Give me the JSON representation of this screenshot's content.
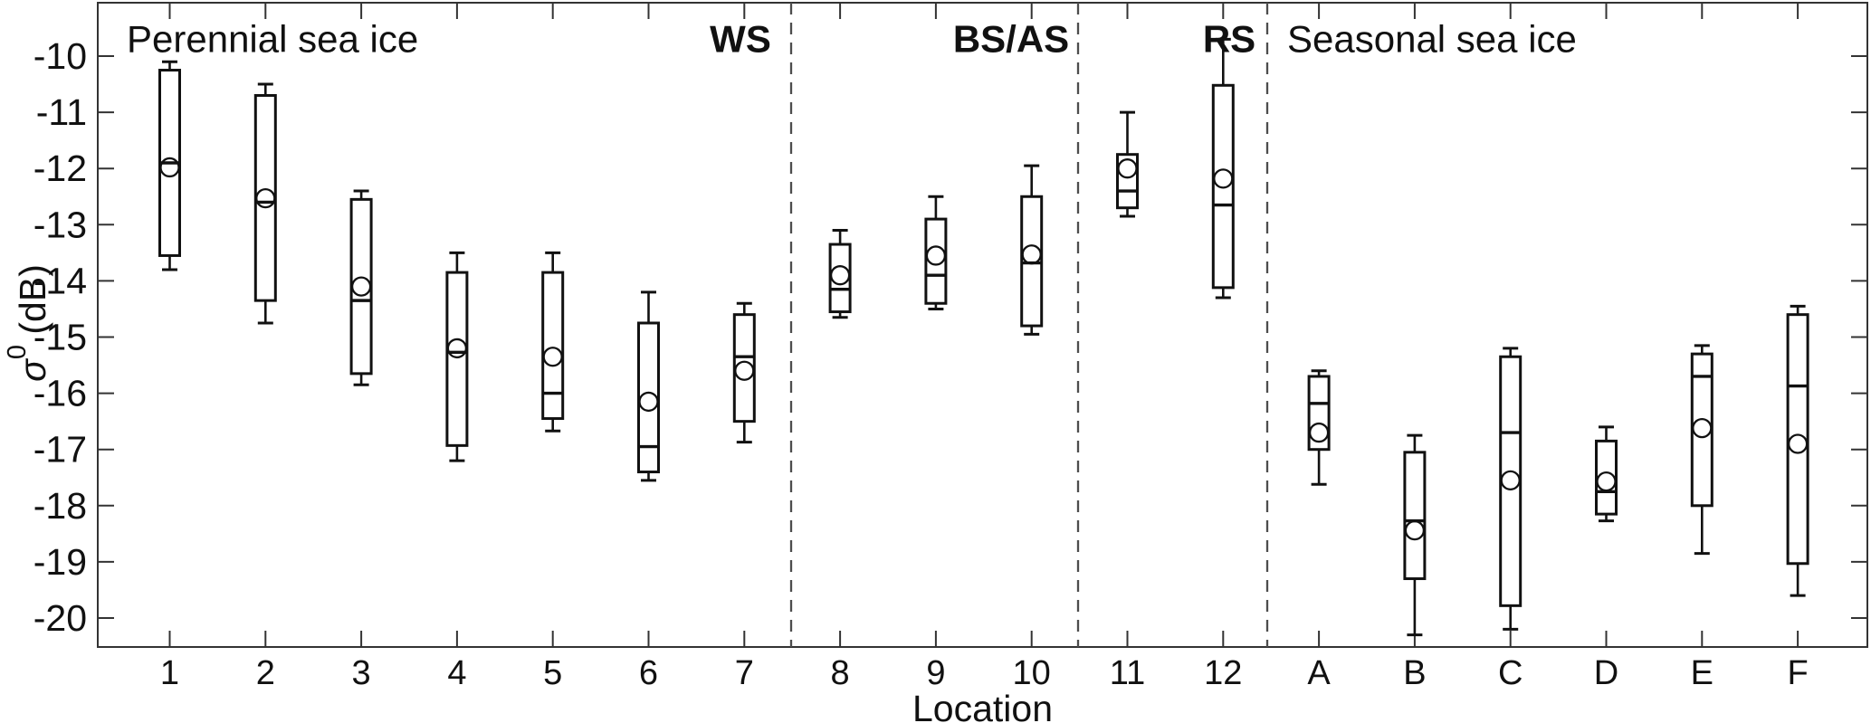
{
  "figure": {
    "background": "#ffffff"
  },
  "chart_data": {
    "type": "boxplot",
    "title": "",
    "xlabel": "Location",
    "ylabel": "σ⁰ (dB)",
    "ylabel_parts": {
      "symbol": "σ",
      "superscript": "0",
      "unit": " (dB)"
    },
    "ylim": [
      -20.5,
      -9.05
    ],
    "yticks": [
      -10,
      -11,
      -12,
      -13,
      -14,
      -15,
      -16,
      -17,
      -18,
      -19,
      -20
    ],
    "ytick_labels": [
      "-10",
      "-11",
      "-12",
      "-13",
      "-14",
      "-15",
      "-16",
      "-17",
      "-18",
      "-19",
      "-20"
    ],
    "categories": [
      "1",
      "2",
      "3",
      "4",
      "5",
      "6",
      "7",
      "8",
      "9",
      "10",
      "11",
      "12",
      "A",
      "B",
      "C",
      "D",
      "E",
      "F"
    ],
    "grid": false,
    "regions": [
      {
        "label": "Perennial sea ice",
        "bold": false,
        "categories": [
          "1",
          "2",
          "3",
          "4",
          "5",
          "6",
          "7",
          "8",
          "9",
          "10",
          "11",
          "12"
        ]
      },
      {
        "label": "WS",
        "bold": true,
        "categories": [
          "1",
          "2",
          "3",
          "4",
          "5",
          "6",
          "7"
        ]
      },
      {
        "label": "BS/AS",
        "bold": true,
        "categories": [
          "8",
          "9",
          "10"
        ]
      },
      {
        "label": "RS",
        "bold": true,
        "categories": [
          "11",
          "12"
        ]
      },
      {
        "label": "Seasonal sea ice",
        "bold": false,
        "categories": [
          "A",
          "B",
          "C",
          "D",
          "E",
          "F"
        ]
      }
    ],
    "dividers_after_categories": [
      "7",
      "10",
      "12"
    ],
    "boxes": [
      {
        "category": "1",
        "whisker_high": -10.1,
        "q3": -10.25,
        "median": -11.9,
        "mean": -11.98,
        "q1": -13.55,
        "whisker_low": -13.8
      },
      {
        "category": "2",
        "whisker_high": -10.5,
        "q3": -10.7,
        "median": -12.6,
        "mean": -12.53,
        "q1": -14.35,
        "whisker_low": -14.75
      },
      {
        "category": "3",
        "whisker_high": -12.4,
        "q3": -12.55,
        "median": -14.35,
        "mean": -14.1,
        "q1": -15.65,
        "whisker_low": -15.85
      },
      {
        "category": "4",
        "whisker_high": -13.5,
        "q3": -13.85,
        "median": -15.27,
        "mean": -15.2,
        "q1": -16.93,
        "whisker_low": -17.2
      },
      {
        "category": "5",
        "whisker_high": -13.5,
        "q3": -13.85,
        "median": -16.0,
        "mean": -15.35,
        "q1": -16.45,
        "whisker_low": -16.67
      },
      {
        "category": "6",
        "whisker_high": -14.2,
        "q3": -14.75,
        "median": -16.95,
        "mean": -16.15,
        "q1": -17.4,
        "whisker_low": -17.55
      },
      {
        "category": "7",
        "whisker_high": -14.4,
        "q3": -14.6,
        "median": -15.35,
        "mean": -15.6,
        "q1": -16.5,
        "whisker_low": -16.87
      },
      {
        "category": "8",
        "whisker_high": -13.1,
        "q3": -13.35,
        "median": -14.15,
        "mean": -13.9,
        "q1": -14.55,
        "whisker_low": -14.65
      },
      {
        "category": "9",
        "whisker_high": -12.5,
        "q3": -12.9,
        "median": -13.9,
        "mean": -13.55,
        "q1": -14.4,
        "whisker_low": -14.5
      },
      {
        "category": "10",
        "whisker_high": -11.95,
        "q3": -12.5,
        "median": -13.68,
        "mean": -13.53,
        "q1": -14.8,
        "whisker_low": -14.95
      },
      {
        "category": "11",
        "whisker_high": -11.0,
        "q3": -11.75,
        "median": -12.4,
        "mean": -12.0,
        "q1": -12.7,
        "whisker_low": -12.85
      },
      {
        "category": "12",
        "whisker_high": -9.7,
        "q3": -10.52,
        "median": -12.65,
        "mean": -12.18,
        "q1": -14.12,
        "whisker_low": -14.3
      },
      {
        "category": "A",
        "whisker_high": -15.6,
        "q3": -15.7,
        "median": -16.18,
        "mean": -16.7,
        "q1": -17.0,
        "whisker_low": -17.62
      },
      {
        "category": "B",
        "whisker_high": -16.75,
        "q3": -17.05,
        "median": -18.27,
        "mean": -18.44,
        "q1": -19.3,
        "whisker_low": -20.3
      },
      {
        "category": "C",
        "whisker_high": -15.2,
        "q3": -15.35,
        "median": -16.7,
        "mean": -17.55,
        "q1": -19.78,
        "whisker_low": -20.2
      },
      {
        "category": "D",
        "whisker_high": -16.6,
        "q3": -16.85,
        "median": -17.75,
        "mean": -17.57,
        "q1": -18.15,
        "whisker_low": -18.27
      },
      {
        "category": "E",
        "whisker_high": -15.15,
        "q3": -15.3,
        "median": -15.7,
        "mean": -16.62,
        "q1": -18.0,
        "whisker_low": -18.85
      },
      {
        "category": "F",
        "whisker_high": -14.45,
        "q3": -14.6,
        "median": -15.87,
        "mean": -16.9,
        "q1": -19.03,
        "whisker_low": -19.6
      }
    ],
    "colors": {
      "box_line": "#111111",
      "frame": "#333333",
      "divider": "#4d4d4d",
      "text": "#111111",
      "box_fill": "#ffffff"
    }
  }
}
